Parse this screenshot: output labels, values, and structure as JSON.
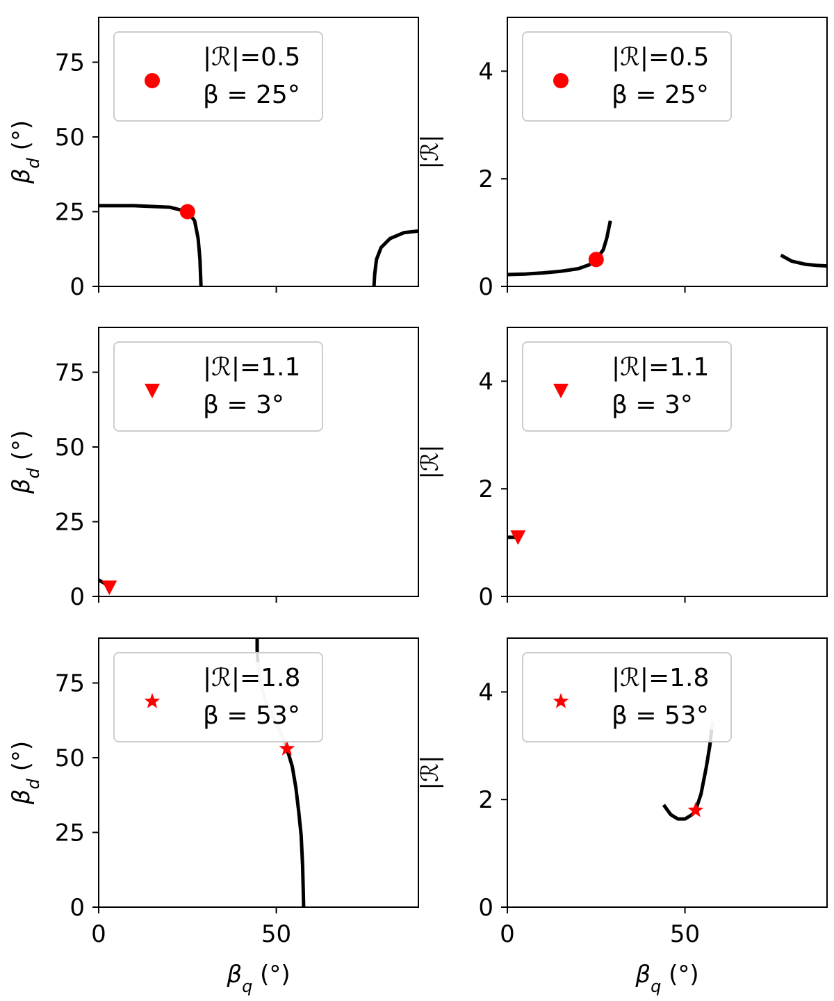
{
  "chart_data": [
    {
      "type": "line",
      "xlabel": "",
      "ylabel": "β_d (°)",
      "xlim": [
        0,
        90
      ],
      "ylim": [
        0,
        90
      ],
      "xticks": [
        0,
        50
      ],
      "yticks": [
        0,
        25,
        50,
        75
      ],
      "xtick_labels_visible": false,
      "legend": {
        "placement": "upper-left",
        "line1": "|ℛ|=0.5",
        "line2": "β = 25°"
      },
      "marker": {
        "shape": "circle",
        "x": 25,
        "y": 25,
        "color": "#ff0000"
      },
      "series": [
        {
          "color": "#000000",
          "x": [
            0,
            10,
            20,
            25,
            27,
            28,
            28.5,
            28.7,
            28.8
          ],
          "y": [
            27,
            27,
            26.5,
            25,
            22,
            16,
            9,
            3,
            0
          ]
        },
        {
          "color": "#000000",
          "x": [
            77.5,
            77.7,
            78.2,
            79.5,
            82,
            86,
            90
          ],
          "y": [
            0,
            4,
            9,
            13,
            16,
            18,
            18.5
          ]
        }
      ]
    },
    {
      "type": "line",
      "xlabel": "",
      "ylabel": "|ℛ|",
      "xlim": [
        0,
        90
      ],
      "ylim": [
        0,
        5
      ],
      "xticks": [
        0,
        50
      ],
      "yticks": [
        0,
        2,
        4
      ],
      "xtick_labels_visible": false,
      "legend": {
        "placement": "upper-left",
        "line1": "|ℛ|=0.5",
        "line2": "β = 25°"
      },
      "marker": {
        "shape": "circle",
        "x": 25,
        "y": 0.5,
        "color": "#ff0000"
      },
      "series": [
        {
          "color": "#000000",
          "x": [
            0,
            5,
            10,
            15,
            20,
            23,
            25,
            27,
            28,
            29
          ],
          "y": [
            0.22,
            0.23,
            0.25,
            0.28,
            0.33,
            0.4,
            0.5,
            0.68,
            0.9,
            1.22
          ]
        },
        {
          "color": "#000000",
          "x": [
            77,
            80,
            84,
            87,
            90
          ],
          "y": [
            0.58,
            0.47,
            0.41,
            0.39,
            0.38
          ]
        }
      ]
    },
    {
      "type": "line",
      "xlabel": "",
      "ylabel": "β_d (°)",
      "xlim": [
        0,
        90
      ],
      "ylim": [
        0,
        90
      ],
      "xticks": [
        0,
        50
      ],
      "yticks": [
        0,
        25,
        50,
        75
      ],
      "xtick_labels_visible": false,
      "legend": {
        "placement": "upper-left",
        "line1": "|ℛ|=1.1",
        "line2": "β = 3°"
      },
      "marker": {
        "shape": "triangle-down",
        "x": 3,
        "y": 3,
        "color": "#ff0000"
      },
      "series": [
        {
          "color": "#000000",
          "x": [
            0,
            1.5,
            3
          ],
          "y": [
            5.5,
            4.5,
            3
          ]
        }
      ]
    },
    {
      "type": "line",
      "xlabel": "",
      "ylabel": "|ℛ|",
      "xlim": [
        0,
        90
      ],
      "ylim": [
        0,
        5
      ],
      "xticks": [
        0,
        50
      ],
      "yticks": [
        0,
        2,
        4
      ],
      "xtick_labels_visible": false,
      "legend": {
        "placement": "upper-left",
        "line1": "|ℛ|=1.1",
        "line2": "β = 3°"
      },
      "marker": {
        "shape": "triangle-down",
        "x": 3,
        "y": 1.1,
        "color": "#ff0000"
      },
      "series": [
        {
          "color": "#000000",
          "x": [
            0,
            1.5,
            3
          ],
          "y": [
            1.1,
            1.1,
            1.1
          ]
        }
      ]
    },
    {
      "type": "line",
      "xlabel": "β_q (°)",
      "ylabel": "β_d (°)",
      "xlim": [
        0,
        90
      ],
      "ylim": [
        0,
        90
      ],
      "xticks": [
        0,
        50
      ],
      "yticks": [
        0,
        25,
        50,
        75
      ],
      "xtick_labels_visible": true,
      "legend": {
        "placement": "upper-left",
        "line1": "|ℛ|=1.8",
        "line2": "β = 53°"
      },
      "marker": {
        "shape": "star",
        "x": 53,
        "y": 53,
        "color": "#ff0000"
      },
      "series": [
        {
          "color": "#000000",
          "x": [
            44.6,
            44.6,
            44.8
          ],
          "y": [
            90,
            86,
            82
          ]
        },
        {
          "color": "#c8c8c8",
          "x": [
            44.8,
            45.5,
            47,
            49,
            51,
            52.5,
            53
          ],
          "y": [
            82,
            75,
            69,
            64,
            59,
            55,
            53
          ]
        },
        {
          "color": "#000000",
          "x": [
            53,
            54.5,
            55.5,
            56.3,
            57,
            57.4,
            57.6,
            57.7
          ],
          "y": [
            53,
            47,
            40,
            32,
            24,
            14,
            5,
            0
          ]
        }
      ]
    },
    {
      "type": "line",
      "xlabel": "β_q (°)",
      "ylabel": "|ℛ|",
      "xlim": [
        0,
        90
      ],
      "ylim": [
        0,
        5
      ],
      "xticks": [
        0,
        50
      ],
      "yticks": [
        0,
        2,
        4
      ],
      "xtick_labels_visible": true,
      "legend": {
        "placement": "upper-left",
        "line1": "|ℛ|=1.8",
        "line2": "β = 53°"
      },
      "marker": {
        "shape": "star",
        "x": 53,
        "y": 1.8,
        "color": "#ff0000"
      },
      "series": [
        {
          "color": "#000000",
          "x": [
            44,
            46,
            48,
            50,
            52,
            53,
            54.5,
            56,
            57,
            57.5
          ],
          "y": [
            1.9,
            1.72,
            1.64,
            1.64,
            1.72,
            1.8,
            2.1,
            2.6,
            3.0,
            3.3
          ]
        },
        {
          "color": "#c8c8c8",
          "x": [
            57.5,
            57.8
          ],
          "y": [
            3.3,
            3.45
          ]
        }
      ]
    }
  ]
}
